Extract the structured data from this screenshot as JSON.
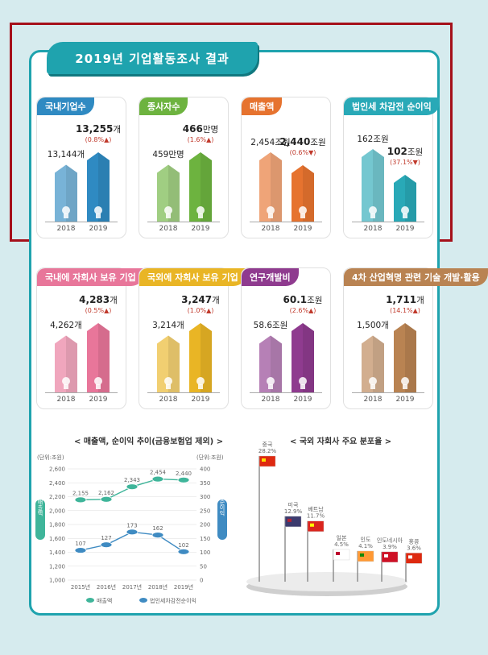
{
  "title": "2019년 기업활동조사 결과",
  "units": {
    "man": "만명",
    "jo": "조원",
    "gae": "개"
  },
  "years": [
    "2018",
    "2019"
  ],
  "cards": [
    {
      "id": "companies",
      "label": "국내기업수",
      "color": "#2f8ac2",
      "v2018": "13,144개",
      "v2019": "13,255",
      "unit2019": "개",
      "change": "(0.8%▲)",
      "icon": "building-icon",
      "h2018": 13144,
      "h2019": 13255
    },
    {
      "id": "employees",
      "label": "종사자수",
      "color": "#6db33f",
      "v2018": "459만명",
      "v2019": "466",
      "unit2019": "만명",
      "change": "(1.6%▲)",
      "icon": "person-icon",
      "h2018": 459,
      "h2019": 466
    },
    {
      "id": "sales",
      "label": "매출액",
      "color": "#e6732f",
      "v2018": "2,454조원",
      "v2019": "2,440",
      "unit2019": "조원",
      "change": "(0.6%▼)",
      "icon": "coins-icon",
      "h2018": 2454,
      "h2019": 2440
    },
    {
      "id": "profit",
      "label": "법인세 차감전 순이익",
      "color": "#29a9b7",
      "v2018": "162조원",
      "v2019": "102",
      "unit2019": "조원",
      "change": "(37.1%▼)",
      "icon": "money-hand-icon",
      "h2018": 162,
      "h2019": 102
    },
    {
      "id": "dom_sub",
      "label": "국내에 자회사 보유 기업",
      "color": "#e8769a",
      "v2018": "4,262개",
      "v2019": "4,283",
      "unit2019": "개",
      "change": "(0.5%▲)",
      "icon": "location-pin-icon",
      "h2018": 4262,
      "h2019": 4283
    },
    {
      "id": "for_sub",
      "label": "국외에 자회사 보유 기업",
      "color": "#e9b525",
      "v2018": "3,214개",
      "v2019": "3,247",
      "unit2019": "개",
      "change": "(1.0%▲)",
      "icon": "airplane-icon",
      "h2018": 3214,
      "h2019": 3247
    },
    {
      "id": "rnd",
      "label": "연구개발비",
      "color": "#8f3b8f",
      "v2018": "58.6조원",
      "v2019": "60.1",
      "unit2019": "조원",
      "change": "(2.6%▲)",
      "icon": "flask-icon",
      "h2018": 58.6,
      "h2019": 60.1
    },
    {
      "id": "tech4",
      "label": "4차 산업혁명 관련 기술 개발·활용",
      "color": "#b98352",
      "v2018": "1,500개",
      "v2019": "1,711",
      "unit2019": "개",
      "change": "(14.1%▲)",
      "icon": "robot-icon",
      "h2018": 1500,
      "h2019": 1711
    }
  ],
  "chart_data": [
    {
      "type": "line",
      "title": "< 매출액, 순이익 추이(금융보험업 제외) >",
      "x": [
        "2015년",
        "2016년",
        "2017년",
        "2018년",
        "2019년"
      ],
      "y_left_unit": "(단위:조원)",
      "y_right_unit": "(단위:조원)",
      "y_left_label": "매출액",
      "y_right_label": "순이익",
      "ylim_left": [
        1000,
        2600
      ],
      "ylim_right": [
        0,
        400
      ],
      "yticks_left": [
        "1,000",
        "1,200",
        "1,400",
        "1,600",
        "1,800",
        "2,000",
        "2,200",
        "2,400",
        "2,600"
      ],
      "yticks_right": [
        "0",
        "50",
        "100",
        "150",
        "200",
        "250",
        "300",
        "350",
        "400"
      ],
      "series": [
        {
          "name": "매출액",
          "axis": "left",
          "values": [
            2155,
            2162,
            2343,
            2454,
            2440
          ],
          "labels": [
            "2,155",
            "2,162",
            "2,343",
            "2,454",
            "2,440"
          ],
          "color": "#3fb59a"
        },
        {
          "name": "법인세차감전순이익",
          "axis": "right",
          "values": [
            107,
            127,
            173,
            162,
            102
          ],
          "labels": [
            "107",
            "127",
            "173",
            "162",
            "102"
          ],
          "color": "#3f8bc2"
        }
      ]
    },
    {
      "type": "bar",
      "title": "< 국외 자회사 주요 분포율 >",
      "categories": [
        "중국",
        "미국",
        "베트남",
        "일본",
        "인도",
        "인도네시아",
        "홍콩"
      ],
      "values": [
        28.2,
        12.9,
        11.7,
        4.5,
        4.1,
        3.9,
        3.6
      ],
      "labels": [
        "28.2%",
        "12.9%",
        "11.7%",
        "4.5%",
        "4.1%",
        "3.9%",
        "3.6%"
      ]
    }
  ]
}
